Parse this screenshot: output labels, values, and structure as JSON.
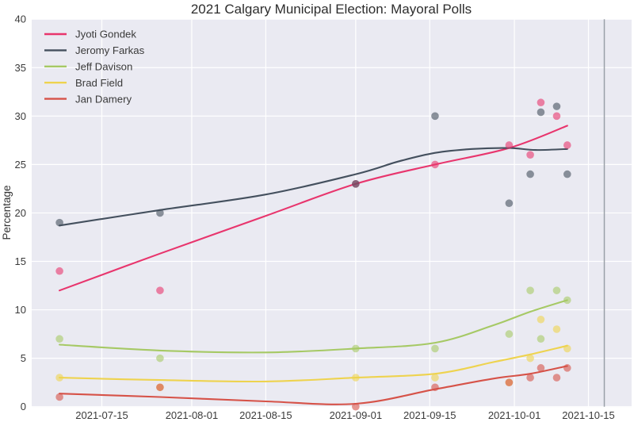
{
  "chart_data": {
    "type": "scatter",
    "title": "2021 Calgary Municipal Election: Mayoral Polls",
    "xlabel": "",
    "ylabel": "Percentage",
    "ylim": [
      0,
      40
    ],
    "y_ticks": [
      0,
      5,
      10,
      15,
      20,
      25,
      30,
      35,
      40
    ],
    "x_ticks": [
      {
        "label": "2021-07-15",
        "day": 14
      },
      {
        "label": "2021-08-01",
        "day": 31
      },
      {
        "label": "2021-08-15",
        "day": 45
      },
      {
        "label": "2021-09-01",
        "day": 62
      },
      {
        "label": "2021-09-15",
        "day": 76
      },
      {
        "label": "2021-10-01",
        "day": 92
      },
      {
        "label": "2021-10-15",
        "day": 106
      }
    ],
    "day_reference": "day = days since 2021-07-01, read from x-axis positions",
    "grid": true,
    "legend_position": "upper left",
    "plot_bg_color": "#eaeaf2",
    "grid_color": "#ffffff",
    "election_marker": {
      "day": 109,
      "date": "2021-10-18",
      "color": "#9aa0a8"
    },
    "marker_alpha": 0.6,
    "polls": [
      {
        "date": "2021-07-07",
        "day": 6,
        "values": {
          "Jyoti Gondek": 14,
          "Jeromy Farkas": 19,
          "Jeff Davison": 7,
          "Brad Field": 3,
          "Jan Damery": 1
        }
      },
      {
        "date": "2021-07-26",
        "day": 25,
        "values": {
          "Jyoti Gondek": 12,
          "Jeromy Farkas": 20,
          "Jeff Davison": 5,
          "Brad Field": 2,
          "Jan Damery": 2
        }
      },
      {
        "date": "2021-09-01",
        "day": 62,
        "values": {
          "Jyoti Gondek": 23,
          "Jeromy Farkas": 23,
          "Jeff Davison": 6,
          "Brad Field": 3,
          "Jan Damery": 0
        }
      },
      {
        "date": "2021-09-16",
        "day": 77,
        "values": {
          "Jyoti Gondek": 25,
          "Jeromy Farkas": 30,
          "Jeff Davison": 6,
          "Brad Field": 3,
          "Jan Damery": 2
        }
      },
      {
        "date": "2021-09-30",
        "day": 91,
        "values": {
          "Jyoti Gondek": 27,
          "Jeromy Farkas": 21,
          "Jeff Davison": 7.5,
          "Brad Field": 2.5,
          "Jan Damery": 2.5
        }
      },
      {
        "date": "2021-10-04",
        "day": 95,
        "values": {
          "Jyoti Gondek": 26,
          "Jeromy Farkas": 24,
          "Jeff Davison": 12,
          "Brad Field": 5,
          "Jan Damery": 3
        }
      },
      {
        "date": "2021-10-06",
        "day": 97,
        "values": {
          "Jyoti Gondek": 31.4,
          "Jeromy Farkas": 30.4,
          "Jeff Davison": 7,
          "Brad Field": 9,
          "Jan Damery": 4
        }
      },
      {
        "date": "2021-10-09",
        "day": 100,
        "values": {
          "Jyoti Gondek": 30,
          "Jeromy Farkas": 31,
          "Jeff Davison": 12,
          "Brad Field": 8,
          "Jan Damery": 3
        }
      },
      {
        "date": "2021-10-11",
        "day": 102,
        "values": {
          "Jyoti Gondek": 27,
          "Jeromy Farkas": 24,
          "Jeff Davison": 11,
          "Brad Field": 6,
          "Jan Damery": 4
        }
      }
    ],
    "series": [
      {
        "name": "Jyoti Gondek",
        "color": "#e8356d",
        "trend": [
          [
            6,
            12.0
          ],
          [
            25,
            15.8
          ],
          [
            45,
            19.7
          ],
          [
            62,
            23.0
          ],
          [
            77,
            25.0
          ],
          [
            91,
            26.7
          ],
          [
            102,
            29.0
          ]
        ]
      },
      {
        "name": "Jeromy Farkas",
        "color": "#44505e",
        "trend": [
          [
            6,
            18.7
          ],
          [
            25,
            20.3
          ],
          [
            45,
            21.9
          ],
          [
            62,
            24.0
          ],
          [
            70,
            25.3
          ],
          [
            77,
            26.2
          ],
          [
            84,
            26.6
          ],
          [
            91,
            26.7
          ],
          [
            96,
            26.5
          ],
          [
            102,
            26.6
          ]
        ]
      },
      {
        "name": "Jeff Davison",
        "color": "#a6c965",
        "trend": [
          [
            6,
            6.4
          ],
          [
            25,
            5.8
          ],
          [
            45,
            5.6
          ],
          [
            62,
            6.0
          ],
          [
            77,
            6.6
          ],
          [
            88,
            8.4
          ],
          [
            95,
            9.8
          ],
          [
            102,
            11.0
          ]
        ]
      },
      {
        "name": "Brad Field",
        "color": "#eed34f",
        "trend": [
          [
            6,
            3.0
          ],
          [
            25,
            2.75
          ],
          [
            45,
            2.6
          ],
          [
            62,
            3.0
          ],
          [
            77,
            3.4
          ],
          [
            88,
            4.6
          ],
          [
            95,
            5.4
          ],
          [
            102,
            6.3
          ]
        ]
      },
      {
        "name": "Jan Damery",
        "color": "#d65248",
        "trend": [
          [
            6,
            1.35
          ],
          [
            25,
            1.0
          ],
          [
            45,
            0.55
          ],
          [
            62,
            0.3
          ],
          [
            77,
            1.8
          ],
          [
            88,
            2.9
          ],
          [
            95,
            3.4
          ],
          [
            102,
            4.2
          ]
        ]
      }
    ]
  }
}
